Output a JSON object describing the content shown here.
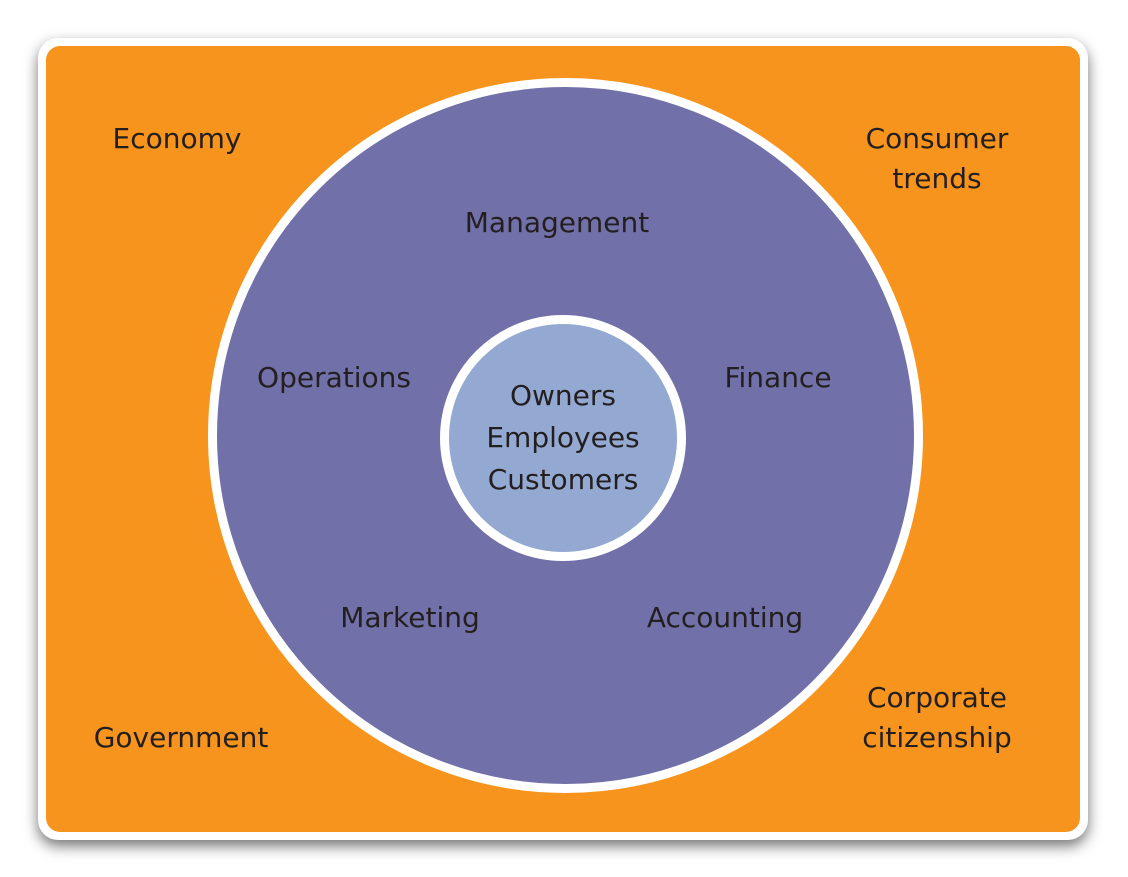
{
  "diagram": {
    "colors": {
      "outer_panel": "#F7941D",
      "business_ring": "#7170A8",
      "core_circle": "#93A9D2",
      "ring_border": "#FFFFFF",
      "text": "#231F20"
    },
    "external_environment": {
      "economy": "Economy",
      "consumer_trends": [
        "Consumer",
        "trends"
      ],
      "government": "Government",
      "corporate_citizenship": [
        "Corporate",
        "citizenship"
      ]
    },
    "business_functions": {
      "management": "Management",
      "operations": "Operations",
      "finance": "Finance",
      "marketing": "Marketing",
      "accounting": "Accounting"
    },
    "core_stakeholders": [
      "Owners",
      "Employees",
      "Customers"
    ]
  }
}
